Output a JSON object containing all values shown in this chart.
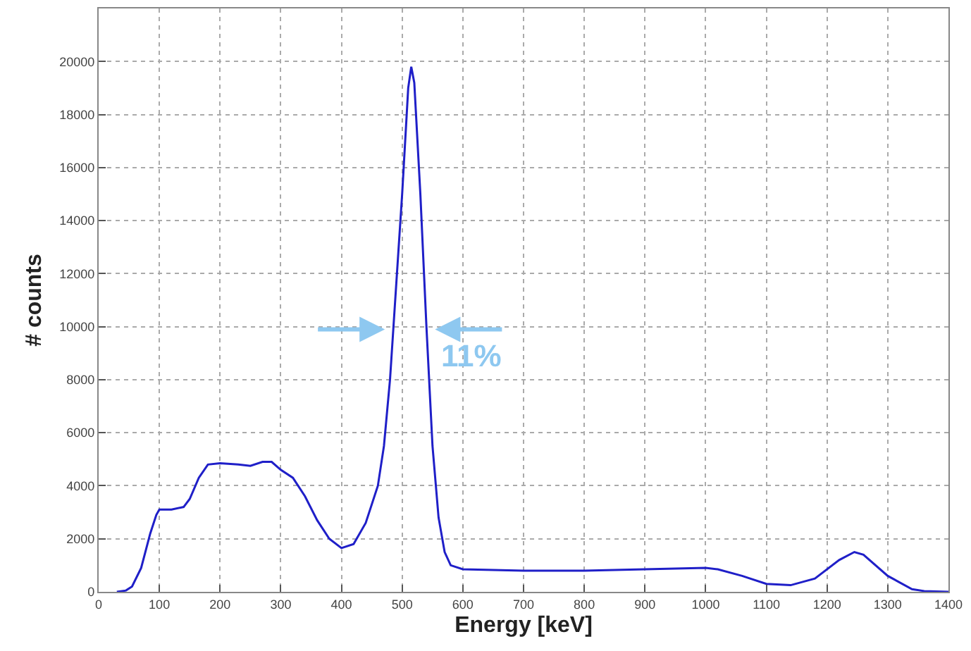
{
  "chart_data": {
    "type": "line",
    "xlabel": "Energy [keV]",
    "ylabel": "# counts",
    "x": [
      30,
      45,
      55,
      70,
      85,
      95,
      100,
      120,
      140,
      150,
      165,
      180,
      200,
      230,
      250,
      270,
      285,
      300,
      320,
      340,
      360,
      380,
      400,
      420,
      440,
      460,
      470,
      480,
      490,
      500,
      510,
      515,
      520,
      530,
      540,
      550,
      560,
      570,
      580,
      600,
      700,
      800,
      900,
      1000,
      1020,
      1060,
      1100,
      1140,
      1180,
      1220,
      1245,
      1260,
      1300,
      1340,
      1360,
      1400
    ],
    "series": [
      {
        "color": "#1f1fc8",
        "values": [
          0,
          50,
          200,
          900,
          2200,
          2900,
          3100,
          3100,
          3200,
          3500,
          4300,
          4800,
          4850,
          4800,
          4750,
          4900,
          4900,
          4600,
          4300,
          3600,
          2700,
          2000,
          1650,
          1800,
          2600,
          4000,
          5500,
          8000,
          11500,
          15000,
          19000,
          19800,
          19200,
          15000,
          10000,
          5500,
          2800,
          1500,
          1000,
          850,
          800,
          800,
          850,
          900,
          850,
          600,
          300,
          250,
          500,
          1200,
          1500,
          1400,
          600,
          100,
          30,
          0
        ]
      }
    ],
    "xlim": [
      0,
      1400
    ],
    "xticks": [
      0,
      100,
      200,
      300,
      400,
      500,
      600,
      700,
      800,
      900,
      1000,
      1100,
      1200,
      1300,
      1400
    ],
    "ylim": [
      0,
      22000
    ],
    "yticks": [
      0,
      2000,
      4000,
      6000,
      8000,
      10000,
      12000,
      14000,
      16000,
      18000,
      20000
    ],
    "grid": true,
    "line_style": "solid",
    "marker": "none",
    "annotations": [
      "11%"
    ]
  }
}
